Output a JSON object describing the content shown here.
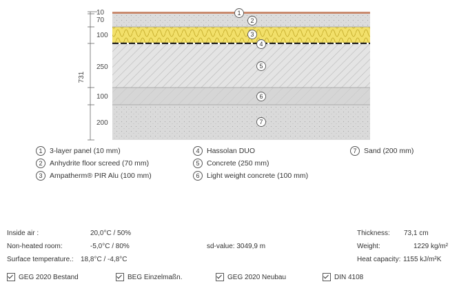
{
  "total_thickness_label": "731",
  "layers": [
    {
      "num": "1",
      "dimension": "10",
      "name": "3-layer panel (10 mm)"
    },
    {
      "num": "2",
      "dimension": "70",
      "name": "Anhydrite floor screed (70 mm)"
    },
    {
      "num": "3",
      "dimension": "100",
      "name": "Ampatherm® PIR Alu (100 mm)"
    },
    {
      "num": "4",
      "dimension": "",
      "name": "Hassolan DUO"
    },
    {
      "num": "5",
      "dimension": "250",
      "name": "Concrete (250 mm)"
    },
    {
      "num": "6",
      "dimension": "100",
      "name": "Light weight concrete (100 mm)"
    },
    {
      "num": "7",
      "dimension": "200",
      "name": "Sand (200 mm)"
    }
  ],
  "conditions": {
    "inside_air_label": "Inside air :",
    "inside_air_value": "20,0°C / 50%",
    "non_heated_label": "Non-heated room:",
    "non_heated_value": "-5,0°C / 80%",
    "surface_temp_label": "Surface temperature.:",
    "surface_temp_value": "18,8°C / -4,8°C"
  },
  "sd_value": "sd-value: 3049,9 m",
  "properties": {
    "thickness_label": "Thickness:",
    "thickness_value": "73,1 cm",
    "weight_label": "Weight:",
    "weight_value": "1229 kg/m²",
    "heat_capacity_label": "Heat capacity:",
    "heat_capacity_value": "1155 kJ/m²K"
  },
  "checks": [
    {
      "label": "GEG 2020 Bestand"
    },
    {
      "label": "BEG Einzelmaßn."
    },
    {
      "label": "GEG 2020 Neubau"
    },
    {
      "label": "DIN 4108"
    }
  ],
  "colors": {
    "wood": "#c98a6e",
    "screed": "#dcdcdc",
    "insulation": "#f2e06a",
    "foil": "#222222",
    "concrete": "#e4e4e4",
    "lightweight": "#d6d6d6",
    "sand": "#dadada"
  }
}
